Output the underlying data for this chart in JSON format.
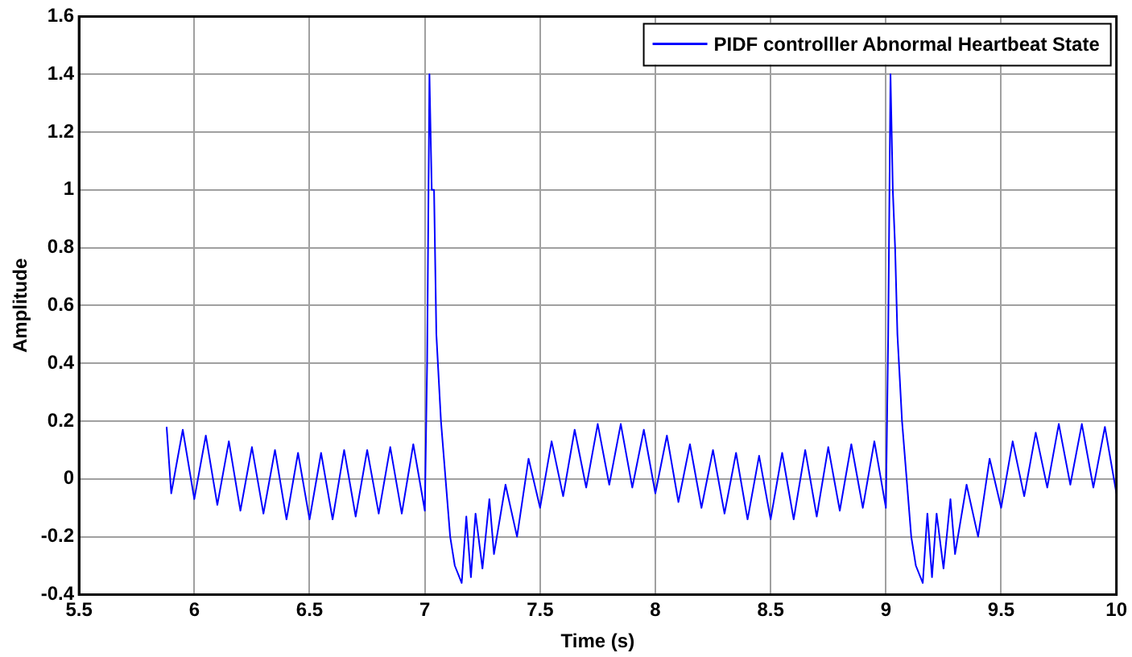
{
  "chart_data": {
    "type": "line",
    "xlabel": "Time (s)",
    "ylabel": "Amplitude",
    "xlim": [
      5.5,
      10
    ],
    "xticks": [
      5.5,
      6,
      6.5,
      7,
      7.5,
      8,
      8.5,
      9,
      9.5,
      10
    ],
    "ylim": [
      -0.4,
      1.6
    ],
    "yticks": [
      -0.4,
      -0.2,
      0,
      0.2,
      0.4,
      0.6,
      0.8,
      1,
      1.2,
      1.4,
      1.6
    ],
    "grid": true,
    "legend": "top right",
    "marker": "none",
    "line_style": "solid",
    "series": [
      {
        "name": "PIDF controlller Abnormal Heartbeat State",
        "color": "#0000ff",
        "x": [
          5.88,
          5.9,
          5.95,
          6.0,
          6.05,
          6.1,
          6.15,
          6.2,
          6.25,
          6.3,
          6.35,
          6.4,
          6.45,
          6.5,
          6.55,
          6.6,
          6.65,
          6.7,
          6.75,
          6.8,
          6.85,
          6.9,
          6.95,
          7.0,
          7.01,
          7.02,
          7.03,
          7.04,
          7.05,
          7.07,
          7.09,
          7.11,
          7.13,
          7.16,
          7.18,
          7.2,
          7.22,
          7.25,
          7.28,
          7.3,
          7.35,
          7.4,
          7.45,
          7.5,
          7.55,
          7.6,
          7.65,
          7.7,
          7.75,
          7.8,
          7.85,
          7.9,
          7.95,
          8.0,
          8.05,
          8.1,
          8.15,
          8.2,
          8.25,
          8.3,
          8.35,
          8.4,
          8.45,
          8.5,
          8.55,
          8.6,
          8.65,
          8.7,
          8.75,
          8.8,
          8.85,
          8.9,
          8.95,
          9.0,
          9.01,
          9.02,
          9.03,
          9.04,
          9.05,
          9.07,
          9.09,
          9.11,
          9.13,
          9.16,
          9.18,
          9.2,
          9.22,
          9.25,
          9.28,
          9.3,
          9.35,
          9.4,
          9.45,
          9.5,
          9.55,
          9.6,
          9.65,
          9.7,
          9.75,
          9.8,
          9.85,
          9.9,
          9.95,
          10.0
        ],
        "values": [
          0.18,
          -0.05,
          0.17,
          -0.07,
          0.15,
          -0.09,
          0.13,
          -0.11,
          0.11,
          -0.12,
          0.1,
          -0.14,
          0.09,
          -0.14,
          0.09,
          -0.14,
          0.1,
          -0.13,
          0.1,
          -0.12,
          0.11,
          -0.12,
          0.12,
          -0.11,
          0.4,
          1.4,
          1.0,
          1.0,
          0.5,
          0.2,
          0.0,
          -0.2,
          -0.3,
          -0.36,
          -0.13,
          -0.34,
          -0.12,
          -0.31,
          -0.07,
          -0.26,
          -0.02,
          -0.2,
          0.07,
          -0.1,
          0.13,
          -0.06,
          0.17,
          -0.03,
          0.19,
          -0.02,
          0.19,
          -0.03,
          0.17,
          -0.05,
          0.15,
          -0.08,
          0.12,
          -0.1,
          0.1,
          -0.12,
          0.09,
          -0.14,
          0.08,
          -0.14,
          0.09,
          -0.14,
          0.1,
          -0.13,
          0.11,
          -0.11,
          0.12,
          -0.1,
          0.13,
          -0.1,
          0.5,
          1.4,
          1.0,
          0.8,
          0.5,
          0.2,
          0.0,
          -0.2,
          -0.3,
          -0.36,
          -0.12,
          -0.34,
          -0.12,
          -0.31,
          -0.07,
          -0.26,
          -0.02,
          -0.2,
          0.07,
          -0.1,
          0.13,
          -0.06,
          0.16,
          -0.03,
          0.19,
          -0.02,
          0.19,
          -0.03,
          0.18,
          -0.05
        ]
      }
    ]
  }
}
